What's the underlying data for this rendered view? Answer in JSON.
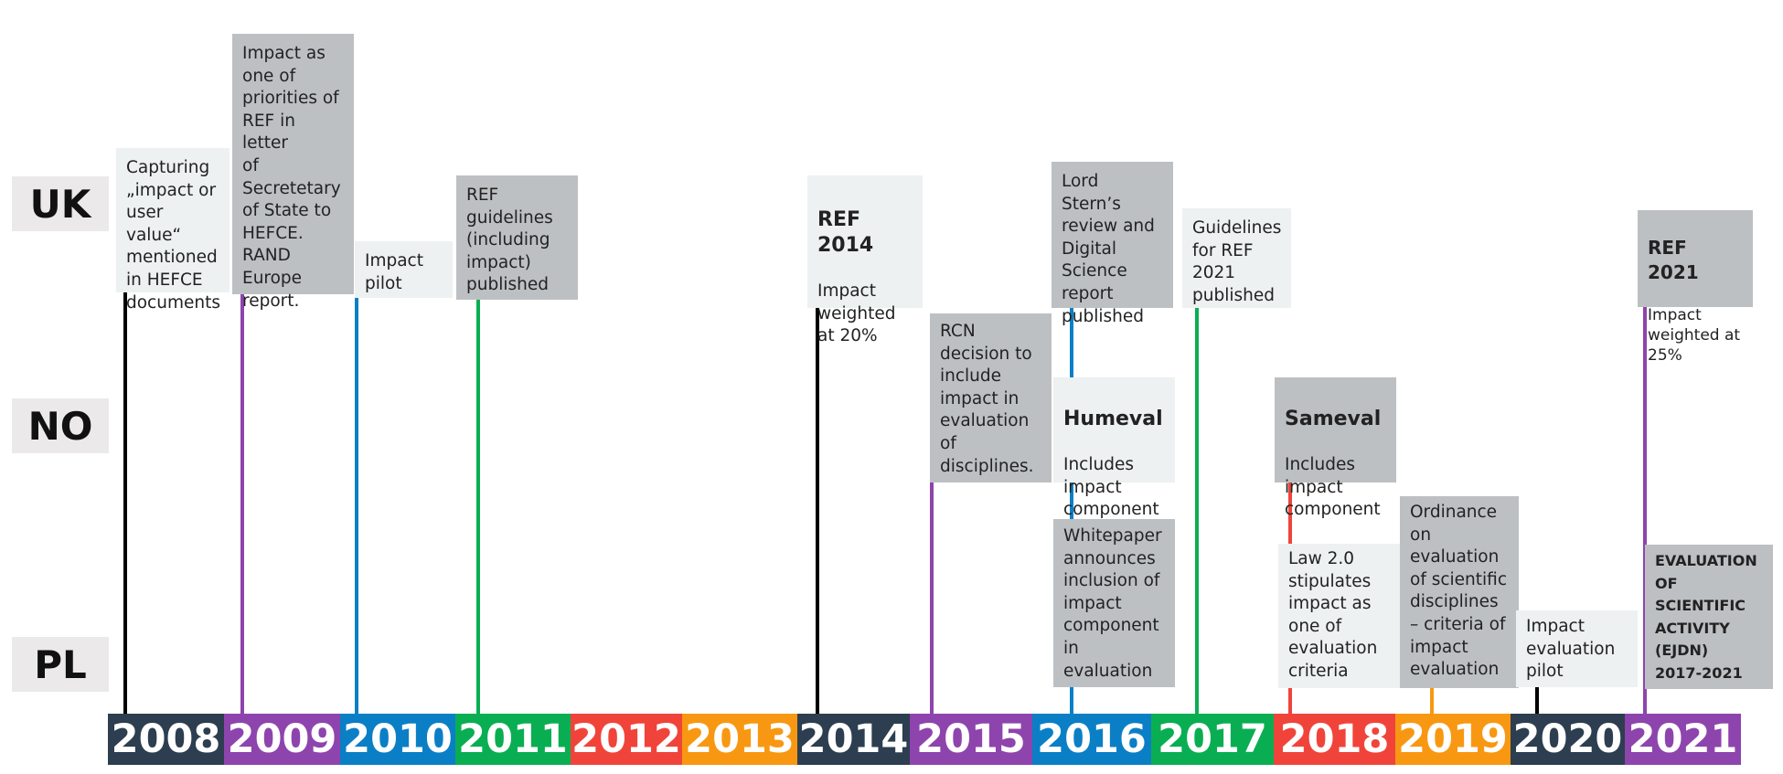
{
  "countries": [
    "UK",
    "NO",
    "PL"
  ],
  "years": [
    {
      "label": "2008",
      "color": "#2c3e50"
    },
    {
      "label": "2009",
      "color": "#8e44ad"
    },
    {
      "label": "2010",
      "color": "#0a7fc6"
    },
    {
      "label": "2011",
      "color": "#0aae52"
    },
    {
      "label": "2012",
      "color": "#f0443a"
    },
    {
      "label": "2013",
      "color": "#f89812"
    },
    {
      "label": "2014",
      "color": "#2c3e50"
    },
    {
      "label": "2015",
      "color": "#8e44ad"
    },
    {
      "label": "2016",
      "color": "#0a7fc6"
    },
    {
      "label": "2017",
      "color": "#0aae52"
    },
    {
      "label": "2018",
      "color": "#f0443a"
    },
    {
      "label": "2019",
      "color": "#f89812"
    },
    {
      "label": "2020",
      "color": "#2c3e50"
    },
    {
      "label": "2021",
      "color": "#8e44ad"
    }
  ],
  "events": {
    "uk_2008": {
      "text": "Capturing\n„impact or\nuser value“\nmentioned\nin HEFCE\ndocuments"
    },
    "uk_2009": {
      "text": "Impact as\none of\npriorities of\nREF in letter\nof\nSecretetary\nof State to\nHEFCE.\nRAND\nEurope\nreport."
    },
    "uk_2010": {
      "text": "Impact\npilot"
    },
    "uk_2011": {
      "text": "REF\nguidelines\n(including\nimpact)\npublished"
    },
    "uk_2014": {
      "title": "REF\n2014",
      "text": "Impact\nweighted\nat 20%"
    },
    "no_2015": {
      "text": "RCN\ndecision to\ninclude\nimpact in\nevaluation\nof\ndisciplines."
    },
    "uk_2016": {
      "text": "Lord Stern’s\nreview and\nDigital\nScience\nreport\npublished"
    },
    "no_2016": {
      "title": "Humeval",
      "text": "Includes\nimpact\ncomponent"
    },
    "pl_2016": {
      "text": "Whitepaper\nannounces\ninclusion of\nimpact\ncomponent\nin\nevaluation"
    },
    "uk_2017": {
      "text": "Guidelines\nfor REF\n2021\npublished"
    },
    "no_2018": {
      "title": "Sameval",
      "text": "Includes\nimpact\ncomponent"
    },
    "pl_2018": {
      "text": "Law 2.0\nstipulates\nimpact as\none of\nevaluation\ncriteria"
    },
    "pl_2019": {
      "text": "Ordinance\non\nevaluation\nof scientific\ndisciplines\n– criteria of\nimpact\nevaluation"
    },
    "pl_2020": {
      "text": "Impact\nevaluation\npilot"
    },
    "uk_2021": {
      "title": "REF 2021",
      "text": "Impact\nweighted at\n25%"
    },
    "pl_2021": {
      "text": "EVALUATION\nOF\nSCIENTIFIC\nACTIVITY\n(EJDN)\n2017-2021"
    }
  }
}
